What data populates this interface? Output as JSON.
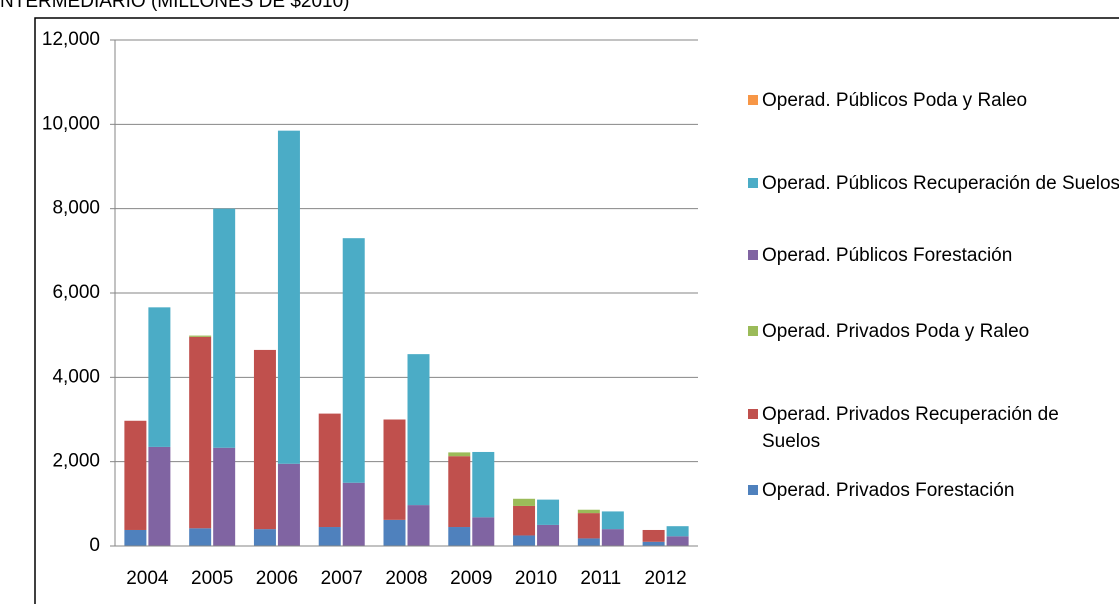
{
  "chart_data": {
    "type": "grouped-stacked-bar",
    "title": "NTERMEDIARIO (MILLONES DE $2010)",
    "categories": [
      "2004",
      "2005",
      "2006",
      "2007",
      "2008",
      "2009",
      "2010",
      "2011",
      "2012"
    ],
    "series": [
      {
        "name": "Operad. Privados Forestación",
        "color": "#4f81bd",
        "group": 1,
        "values": [
          380,
          420,
          400,
          450,
          620,
          450,
          250,
          180,
          100
        ]
      },
      {
        "name": "Operad. Privados Recuperación de Suelos",
        "color": "#c0504d",
        "group": 1,
        "values": [
          2590,
          4540,
          4250,
          2690,
          2380,
          1680,
          700,
          600,
          280
        ]
      },
      {
        "name": "Operad. Privados Poda y Raleo",
        "color": "#9bbb59",
        "group": 1,
        "values": [
          0,
          30,
          0,
          0,
          0,
          90,
          170,
          80,
          0
        ]
      },
      {
        "name": "Operad. Públicos Forestación",
        "color": "#8064a2",
        "group": 2,
        "values": [
          2350,
          2330,
          1950,
          1500,
          970,
          680,
          500,
          400,
          230
        ]
      },
      {
        "name": "Operad. Públicos Recuperación de Suelos",
        "color": "#4bacc6",
        "group": 2,
        "values": [
          3310,
          5670,
          7900,
          5800,
          3580,
          1550,
          600,
          420,
          240
        ]
      },
      {
        "name": "Operad. Públicos Poda y Raleo",
        "color": "#f79646",
        "group": 2,
        "values": [
          0,
          0,
          0,
          0,
          0,
          0,
          0,
          0,
          0
        ]
      }
    ],
    "ylim": [
      0,
      12000
    ],
    "yticks": [
      0,
      {
        "value": 2000,
        "label": "2,000"
      },
      {
        "value": 4000,
        "label": "4,000"
      },
      {
        "value": 6000,
        "label": "6,000"
      },
      {
        "value": 8000,
        "label": "8,000"
      },
      {
        "value": 10000,
        "label": "10,000"
      },
      {
        "value": 12000,
        "label": "12,000"
      }
    ],
    "grid": true,
    "legend": "right"
  }
}
